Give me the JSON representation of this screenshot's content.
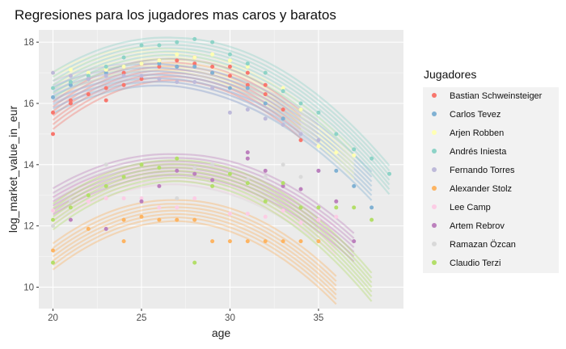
{
  "chart_data": {
    "type": "scatter",
    "title": "Regresiones para los jugadores mas caros y baratos",
    "xlabel": "age",
    "ylabel": "log_market_value_in_eur",
    "xlim": [
      19.2,
      39.8
    ],
    "ylim": [
      9.3,
      18.4
    ],
    "x_ticks": [
      20,
      25,
      30,
      35
    ],
    "y_ticks": [
      10,
      12,
      14,
      16,
      18
    ],
    "grid": true,
    "background": "#EBEBEB",
    "legend": {
      "title": "Jugadores",
      "position": "right"
    },
    "series": [
      {
        "name": "Bastian Schweinsteiger",
        "color": "#F8766D",
        "x": [
          20,
          20,
          21,
          21,
          22,
          23,
          23,
          24,
          24,
          25,
          25,
          26,
          26,
          27,
          27,
          28,
          28,
          29,
          29,
          30,
          30,
          31,
          31,
          32,
          32,
          33,
          33,
          34
        ],
        "y": [
          15.0,
          15.7,
          16.0,
          16.1,
          16.3,
          16.1,
          16.5,
          16.6,
          17.0,
          16.8,
          17.3,
          17.2,
          17.4,
          17.2,
          17.4,
          17.3,
          17.5,
          17.0,
          17.2,
          16.9,
          17.2,
          16.6,
          17.0,
          16.3,
          16.6,
          15.5,
          15.8,
          14.8
        ],
        "fit": [
          [
            20,
            15.6
          ],
          [
            27,
            17.1
          ],
          [
            34,
            15.3
          ]
        ]
      },
      {
        "name": "Carlos Tevez",
        "color": "#80B1D3",
        "x": [
          20,
          21,
          22,
          23,
          24,
          25,
          26,
          27,
          28,
          29,
          30,
          31,
          32,
          33,
          34,
          35,
          36,
          37,
          38
        ],
        "y": [
          16.2,
          16.6,
          16.8,
          17.0,
          17.2,
          17.3,
          17.3,
          17.2,
          17.2,
          17.0,
          16.5,
          16.5,
          16.0,
          15.5,
          15.8,
          13.8,
          13.8,
          13.3,
          12.6
        ],
        "fit": [
          [
            20,
            16.1
          ],
          [
            27,
            16.9
          ],
          [
            38,
            13.3
          ]
        ]
      },
      {
        "name": "Arjen Robben",
        "color": "#FFFFB3",
        "x": [
          20,
          21,
          22,
          23,
          24,
          25,
          26,
          27,
          28,
          29,
          30,
          31,
          32,
          33,
          34,
          35,
          36,
          37
        ],
        "y": [
          17.0,
          17.1,
          17.0,
          17.1,
          17.2,
          17.3,
          17.4,
          17.6,
          17.5,
          17.6,
          17.4,
          17.2,
          17.0,
          16.5,
          15.8,
          14.6,
          14.4,
          14.3
        ],
        "fit": [
          [
            20,
            16.6
          ],
          [
            27,
            17.4
          ],
          [
            37,
            14.0
          ]
        ]
      },
      {
        "name": "Andrés Iniesta",
        "color": "#8DD3C7",
        "x": [
          20,
          21,
          22,
          23,
          24,
          25,
          26,
          27,
          28,
          29,
          30,
          31,
          32,
          33,
          34,
          35,
          36,
          37,
          38,
          39
        ],
        "y": [
          16.5,
          16.7,
          16.9,
          17.2,
          17.5,
          17.9,
          17.9,
          18.0,
          18.1,
          18.0,
          17.6,
          17.3,
          17.0,
          16.4,
          16.0,
          15.7,
          15.0,
          14.5,
          14.2,
          13.7
        ],
        "fit": [
          [
            20,
            16.6
          ],
          [
            27,
            17.8
          ],
          [
            39,
            13.5
          ]
        ]
      },
      {
        "name": "Fernando Torres",
        "color": "#BEBADA",
        "x": [
          20,
          21,
          22,
          23,
          24,
          25,
          26,
          27,
          28,
          29,
          30,
          31,
          32,
          33,
          34,
          35
        ],
        "y": [
          17.0,
          16.9,
          16.8,
          16.9,
          16.9,
          16.9,
          16.8,
          16.7,
          16.7,
          16.5,
          15.7,
          15.8,
          15.5,
          15.3,
          15.0,
          14.8
        ],
        "fit": [
          [
            20,
            16.3
          ],
          [
            27,
            16.9
          ],
          [
            35,
            15.0
          ]
        ]
      },
      {
        "name": "Alexander Stolz",
        "color": "#FDB462",
        "x": [
          20,
          22,
          24,
          24,
          25,
          26,
          27,
          28,
          29,
          30,
          31,
          32,
          33,
          34,
          35
        ],
        "y": [
          11.2,
          11.9,
          12.2,
          11.5,
          12.3,
          12.2,
          12.2,
          12.2,
          11.5,
          11.5,
          11.5,
          11.5,
          11.5,
          11.5,
          11.5
        ],
        "fit": [
          [
            20,
            11.0
          ],
          [
            27,
            12.5
          ],
          [
            36,
            9.9
          ]
        ]
      },
      {
        "name": "Lee Camp",
        "color": "#FCCDE5",
        "x": [
          20,
          22,
          23,
          24,
          25,
          26,
          27,
          28,
          30,
          31,
          32,
          33,
          34,
          35,
          36
        ],
        "y": [
          12.5,
          12.8,
          12.9,
          12.9,
          12.9,
          12.6,
          12.6,
          12.9,
          12.4,
          12.4,
          12.3,
          12.5,
          12.1,
          12.2,
          12.3
        ],
        "fit": [
          [
            20,
            12.5
          ],
          [
            27,
            13.7
          ],
          [
            36,
            11.5
          ]
        ]
      },
      {
        "name": "Artem Rebrov",
        "color": "#BC80BD",
        "x": [
          21,
          23,
          25,
          26,
          27,
          28,
          29,
          30,
          31,
          31,
          32,
          33,
          34,
          35,
          36,
          37
        ],
        "y": [
          12.2,
          11.9,
          12.8,
          13.3,
          13.8,
          13.7,
          13.5,
          13.8,
          14.4,
          14.2,
          13.8,
          13.3,
          13.2,
          13.8,
          12.8,
          11.5
        ],
        "fit": [
          [
            20,
            12.8
          ],
          [
            27,
            14.0
          ],
          [
            37,
            11.3
          ]
        ]
      },
      {
        "name": "Ramazan Özcan",
        "color": "#D9D9D9",
        "x": [
          20,
          21,
          23,
          25,
          26,
          27,
          28,
          29,
          30,
          31,
          32,
          33,
          34
        ],
        "y": [
          12.0,
          12.8,
          14.0,
          14.0,
          13.9,
          12.9,
          13.9,
          14.0,
          13.8,
          13.5,
          13.6,
          14.0,
          13.6
        ],
        "fit": [
          [
            20,
            12.6
          ],
          [
            27,
            13.7
          ],
          [
            35,
            11.9
          ]
        ]
      },
      {
        "name": "Claudio Terzi",
        "color": "#B3DE69",
        "x": [
          20,
          20,
          21,
          22,
          23,
          24,
          25,
          26,
          27,
          28,
          29,
          30,
          31,
          32,
          33,
          34,
          35,
          36,
          37,
          38
        ],
        "y": [
          10.8,
          12.2,
          12.6,
          13.0,
          13.3,
          13.6,
          14.0,
          13.9,
          14.2,
          10.8,
          13.3,
          13.7,
          13.4,
          12.8,
          13.4,
          12.6,
          12.6,
          12.6,
          12.6,
          12.2
        ],
        "fit": [
          [
            20,
            12.3
          ],
          [
            27,
            13.8
          ],
          [
            38,
            10.0
          ]
        ]
      }
    ]
  }
}
